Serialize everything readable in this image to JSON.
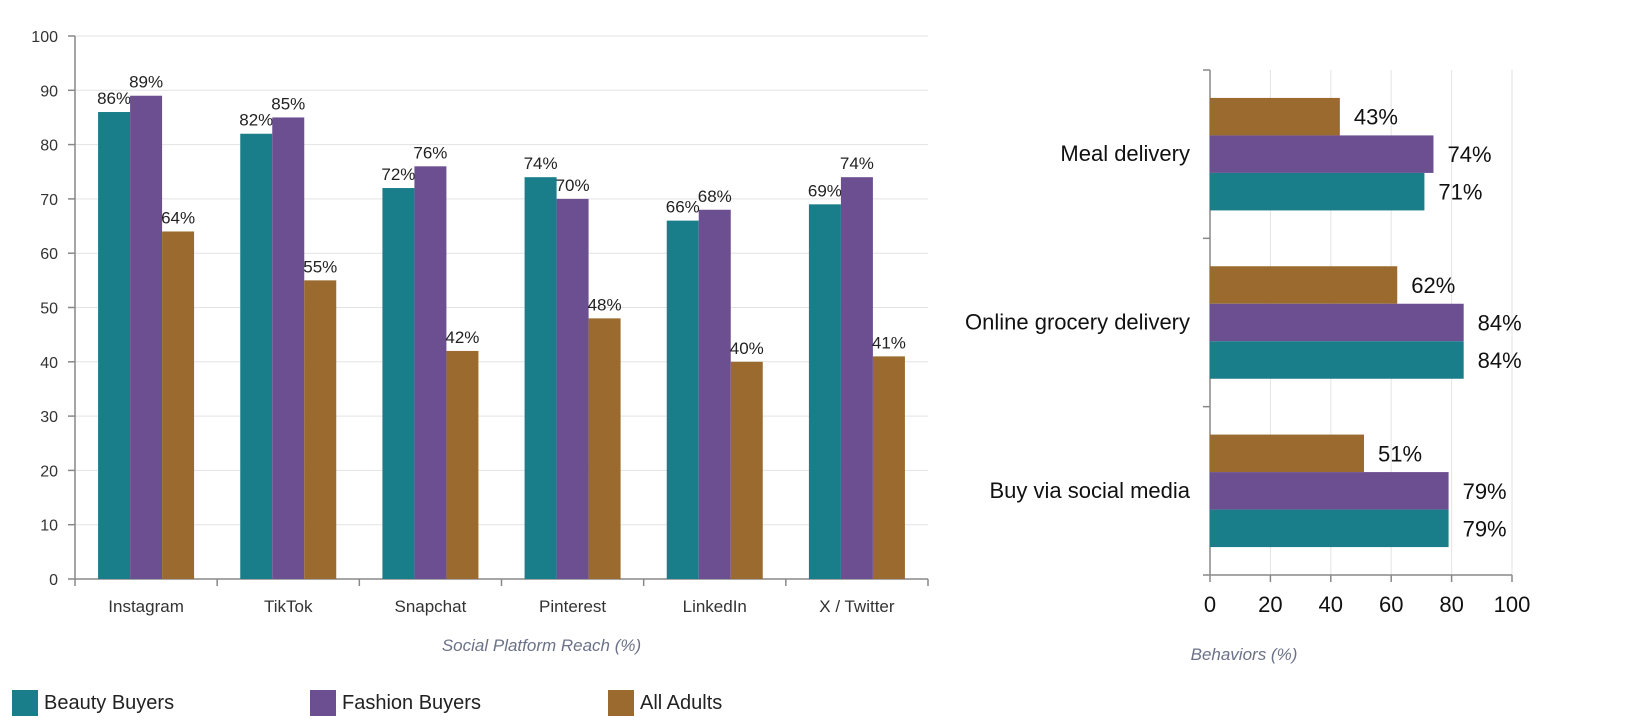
{
  "chart_data": [
    {
      "type": "bar",
      "orientation": "vertical",
      "title": "",
      "xlabel": "Social Platform Reach (%)",
      "ylabel": "",
      "ylim": [
        0,
        100
      ],
      "yticks": [
        "0",
        "10",
        "20",
        "30",
        "40",
        "50",
        "60",
        "70",
        "80",
        "90",
        "100"
      ],
      "grid": true,
      "categories": [
        "Instagram",
        "TikTok",
        "Snapchat",
        "Pinterest",
        "LinkedIn",
        "X / Twitter"
      ],
      "series": [
        {
          "name": "Beauty Buyers",
          "color": "#1a7d8a",
          "values": [
            86,
            82,
            72,
            74,
            66,
            69
          ],
          "labels": [
            "86%",
            "82%",
            "72%",
            "74%",
            "66%",
            "69%"
          ]
        },
        {
          "name": "Fashion Buyers",
          "color": "#6c4f91",
          "values": [
            89,
            85,
            76,
            70,
            68,
            74
          ],
          "labels": [
            "89%",
            "85%",
            "76%",
            "70%",
            "68%",
            "74%"
          ]
        },
        {
          "name": "All Adults",
          "color": "#9a6a2e",
          "values": [
            64,
            55,
            42,
            48,
            40,
            41
          ],
          "labels": [
            "64%",
            "55%",
            "42%",
            "48%",
            "40%",
            "41%"
          ]
        }
      ]
    },
    {
      "type": "bar",
      "orientation": "horizontal",
      "title": "",
      "xlabel": "Behaviors (%)",
      "ylabel": "",
      "xlim": [
        0,
        100
      ],
      "xticks": [
        "0",
        "20",
        "40",
        "60",
        "80",
        "100"
      ],
      "grid": true,
      "categories": [
        "Meal delivery",
        "Online grocery delivery",
        "Buy via social media"
      ],
      "series": [
        {
          "name": "All Adults",
          "color": "#9a6a2e",
          "values": [
            43,
            62,
            51
          ],
          "labels": [
            "43%",
            "62%",
            "51%"
          ]
        },
        {
          "name": "Fashion Buyers",
          "color": "#6c4f91",
          "values": [
            74,
            84,
            79
          ],
          "labels": [
            "74%",
            "84%",
            "79%"
          ]
        },
        {
          "name": "Beauty Buyers",
          "color": "#1a7d8a",
          "values": [
            71,
            84,
            79
          ],
          "labels": [
            "71%",
            "84%",
            "79%"
          ]
        }
      ]
    }
  ],
  "legend": {
    "items": [
      {
        "label": "Beauty Buyers",
        "color": "#1a7d8a"
      },
      {
        "label": "Fashion Buyers",
        "color": "#6c4f91"
      },
      {
        "label": "All Adults",
        "color": "#9a6a2e"
      }
    ]
  }
}
